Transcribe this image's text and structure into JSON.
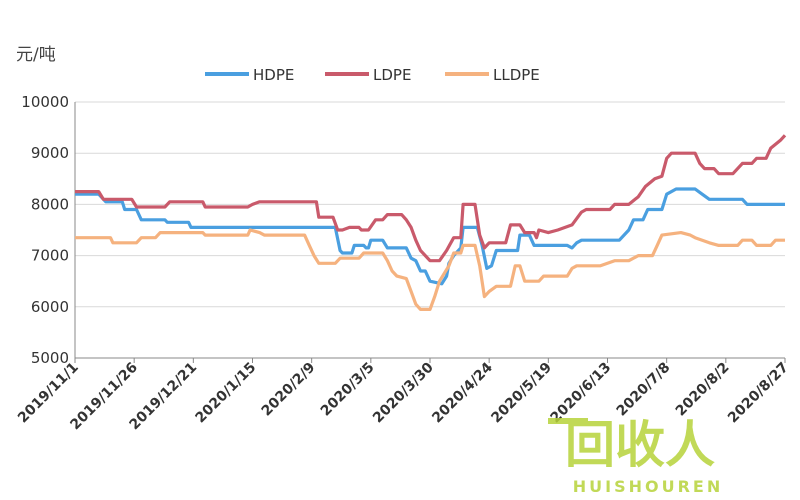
{
  "chart_data": {
    "type": "line",
    "ylabel": "元/吨",
    "ylim": [
      5000,
      10000
    ],
    "yticks": [
      5000,
      6000,
      7000,
      8000,
      9000,
      10000
    ],
    "grid": "horizontal",
    "legend_position": "top",
    "x_tick_labels": [
      "2019/11/1",
      "2019/11/26",
      "2019/12/21",
      "2020/1/15",
      "2020/2/9",
      "2020/3/5",
      "2020/3/30",
      "2020/4/24",
      "2020/5/19",
      "2020/6/13",
      "2020/7/8",
      "2020/8/2",
      "2020/8/27"
    ],
    "x_days": [
      0,
      25,
      50,
      75,
      100,
      125,
      150,
      175,
      200,
      225,
      250,
      275,
      300
    ],
    "series": [
      {
        "name": "HDPE",
        "color": "#4a9fe0",
        "points": [
          [
            0,
            8200
          ],
          [
            10,
            8200
          ],
          [
            13,
            8050
          ],
          [
            20,
            8050
          ],
          [
            21,
            7900
          ],
          [
            26,
            7900
          ],
          [
            28,
            7700
          ],
          [
            38,
            7700
          ],
          [
            39,
            7650
          ],
          [
            48,
            7650
          ],
          [
            49,
            7550
          ],
          [
            110,
            7550
          ],
          [
            112,
            7100
          ],
          [
            113,
            7050
          ],
          [
            117,
            7050
          ],
          [
            118,
            7200
          ],
          [
            122,
            7200
          ],
          [
            123,
            7150
          ],
          [
            124,
            7150
          ],
          [
            125,
            7300
          ],
          [
            130,
            7300
          ],
          [
            132,
            7150
          ],
          [
            140,
            7150
          ],
          [
            142,
            6950
          ],
          [
            144,
            6900
          ],
          [
            146,
            6700
          ],
          [
            148,
            6700
          ],
          [
            150,
            6500
          ],
          [
            155,
            6450
          ],
          [
            157,
            6600
          ],
          [
            158,
            6850
          ],
          [
            160,
            7000
          ],
          [
            163,
            7150
          ],
          [
            164,
            7550
          ],
          [
            170,
            7550
          ],
          [
            172,
            7200
          ],
          [
            174,
            6750
          ],
          [
            176,
            6800
          ],
          [
            178,
            7100
          ],
          [
            187,
            7100
          ],
          [
            188,
            7400
          ],
          [
            192,
            7400
          ],
          [
            194,
            7200
          ],
          [
            208,
            7200
          ],
          [
            210,
            7150
          ],
          [
            212,
            7250
          ],
          [
            214,
            7300
          ],
          [
            230,
            7300
          ],
          [
            234,
            7500
          ],
          [
            236,
            7700
          ],
          [
            240,
            7700
          ],
          [
            242,
            7900
          ],
          [
            248,
            7900
          ],
          [
            250,
            8200
          ],
          [
            254,
            8300
          ],
          [
            262,
            8300
          ],
          [
            265,
            8200
          ],
          [
            268,
            8100
          ],
          [
            282,
            8100
          ],
          [
            284,
            8000
          ],
          [
            300,
            8000
          ]
        ]
      },
      {
        "name": "LDPE",
        "color": "#c95a6b",
        "points": [
          [
            0,
            8250
          ],
          [
            10,
            8250
          ],
          [
            12,
            8100
          ],
          [
            24,
            8100
          ],
          [
            26,
            7950
          ],
          [
            38,
            7950
          ],
          [
            40,
            8050
          ],
          [
            54,
            8050
          ],
          [
            55,
            7950
          ],
          [
            73,
            7950
          ],
          [
            75,
            8000
          ],
          [
            78,
            8050
          ],
          [
            102,
            8050
          ],
          [
            103,
            7750
          ],
          [
            109,
            7750
          ],
          [
            111,
            7500
          ],
          [
            113,
            7500
          ],
          [
            116,
            7550
          ],
          [
            120,
            7550
          ],
          [
            121,
            7500
          ],
          [
            124,
            7500
          ],
          [
            127,
            7700
          ],
          [
            130,
            7700
          ],
          [
            132,
            7800
          ],
          [
            138,
            7800
          ],
          [
            140,
            7700
          ],
          [
            142,
            7550
          ],
          [
            144,
            7300
          ],
          [
            146,
            7100
          ],
          [
            148,
            7000
          ],
          [
            150,
            6900
          ],
          [
            154,
            6900
          ],
          [
            157,
            7100
          ],
          [
            160,
            7350
          ],
          [
            163,
            7350
          ],
          [
            164,
            8000
          ],
          [
            169,
            8000
          ],
          [
            171,
            7400
          ],
          [
            173,
            7150
          ],
          [
            175,
            7250
          ],
          [
            182,
            7250
          ],
          [
            184,
            7600
          ],
          [
            188,
            7600
          ],
          [
            190,
            7450
          ],
          [
            194,
            7450
          ],
          [
            195,
            7350
          ],
          [
            196,
            7500
          ],
          [
            200,
            7450
          ],
          [
            204,
            7500
          ],
          [
            210,
            7600
          ],
          [
            214,
            7850
          ],
          [
            216,
            7900
          ],
          [
            226,
            7900
          ],
          [
            228,
            8000
          ],
          [
            234,
            8000
          ],
          [
            238,
            8150
          ],
          [
            241,
            8350
          ],
          [
            245,
            8500
          ],
          [
            248,
            8550
          ],
          [
            250,
            8900
          ],
          [
            252,
            9000
          ],
          [
            262,
            9000
          ],
          [
            264,
            8800
          ],
          [
            266,
            8700
          ],
          [
            270,
            8700
          ],
          [
            272,
            8600
          ],
          [
            278,
            8600
          ],
          [
            282,
            8800
          ],
          [
            286,
            8800
          ],
          [
            288,
            8900
          ],
          [
            292,
            8900
          ],
          [
            294,
            9100
          ],
          [
            298,
            9250
          ],
          [
            300,
            9350
          ]
        ]
      },
      {
        "name": "LLDPE",
        "color": "#f5b27f",
        "points": [
          [
            0,
            7350
          ],
          [
            15,
            7350
          ],
          [
            16,
            7250
          ],
          [
            26,
            7250
          ],
          [
            28,
            7350
          ],
          [
            34,
            7350
          ],
          [
            36,
            7450
          ],
          [
            54,
            7450
          ],
          [
            55,
            7400
          ],
          [
            73,
            7400
          ],
          [
            74,
            7500
          ],
          [
            78,
            7450
          ],
          [
            80,
            7400
          ],
          [
            97,
            7400
          ],
          [
            99,
            7200
          ],
          [
            101,
            7000
          ],
          [
            103,
            6850
          ],
          [
            110,
            6850
          ],
          [
            112,
            6950
          ],
          [
            120,
            6950
          ],
          [
            122,
            7050
          ],
          [
            130,
            7050
          ],
          [
            132,
            6900
          ],
          [
            134,
            6700
          ],
          [
            136,
            6600
          ],
          [
            140,
            6550
          ],
          [
            142,
            6300
          ],
          [
            144,
            6050
          ],
          [
            146,
            5950
          ],
          [
            150,
            5950
          ],
          [
            152,
            6200
          ],
          [
            154,
            6500
          ],
          [
            158,
            6800
          ],
          [
            160,
            7050
          ],
          [
            163,
            7050
          ],
          [
            164,
            7200
          ],
          [
            169,
            7200
          ],
          [
            171,
            6800
          ],
          [
            173,
            6200
          ],
          [
            175,
            6300
          ],
          [
            178,
            6400
          ],
          [
            184,
            6400
          ],
          [
            186,
            6800
          ],
          [
            188,
            6800
          ],
          [
            190,
            6500
          ],
          [
            196,
            6500
          ],
          [
            198,
            6600
          ],
          [
            208,
            6600
          ],
          [
            210,
            6750
          ],
          [
            212,
            6800
          ],
          [
            222,
            6800
          ],
          [
            228,
            6900
          ],
          [
            234,
            6900
          ],
          [
            238,
            7000
          ],
          [
            244,
            7000
          ],
          [
            246,
            7200
          ],
          [
            248,
            7400
          ],
          [
            256,
            7450
          ],
          [
            260,
            7400
          ],
          [
            262,
            7350
          ],
          [
            268,
            7250
          ],
          [
            272,
            7200
          ],
          [
            280,
            7200
          ],
          [
            282,
            7300
          ],
          [
            286,
            7300
          ],
          [
            288,
            7200
          ],
          [
            294,
            7200
          ],
          [
            296,
            7300
          ],
          [
            300,
            7300
          ]
        ]
      }
    ]
  },
  "watermark": {
    "title": "回收人",
    "subtitle": "HUISHOUREN"
  }
}
